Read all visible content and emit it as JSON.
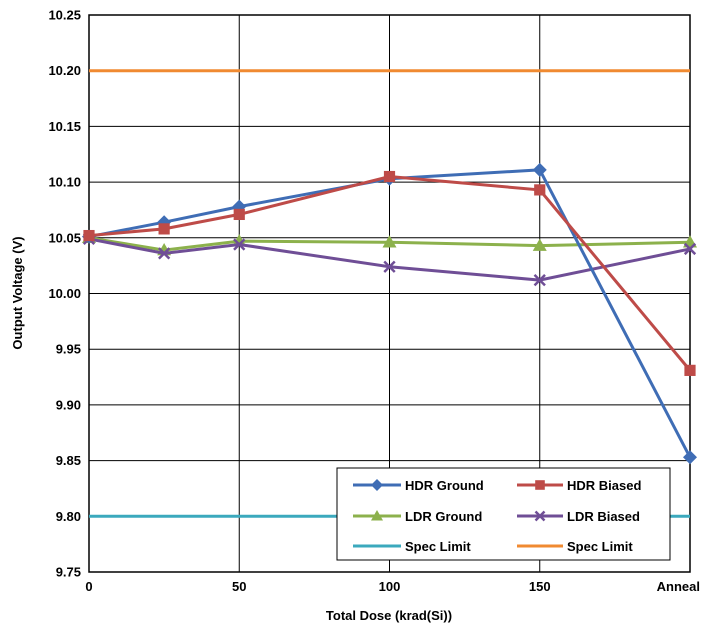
{
  "chart_data": {
    "type": "line",
    "title": "",
    "xlabel": "Total Dose (krad(Si))",
    "ylabel": "Output Voltage (V)",
    "categories": [
      "0",
      "50",
      "100",
      "150",
      "Anneal"
    ],
    "x_numeric": [
      0,
      25,
      50,
      100,
      150,
      200
    ],
    "ylim": [
      9.75,
      10.25
    ],
    "yticks": [
      "10.25",
      "10.20",
      "10.15",
      "10.10",
      "10.05",
      "10.00",
      "9.95",
      "9.90",
      "9.85",
      "9.80",
      "9.75"
    ],
    "grid": true,
    "legend_position": "bottom-right",
    "series": [
      {
        "name": "HDR Ground",
        "color": "#3f6db5",
        "marker": "diamond",
        "x": [
          0,
          25,
          50,
          100,
          150,
          200
        ],
        "values": [
          10.051,
          10.064,
          10.078,
          10.103,
          10.111,
          9.853
        ]
      },
      {
        "name": "HDR Biased",
        "color": "#be4b48",
        "marker": "square",
        "x": [
          0,
          25,
          50,
          100,
          150,
          200
        ],
        "values": [
          10.052,
          10.058,
          10.071,
          10.105,
          10.093,
          9.931
        ]
      },
      {
        "name": "LDR Ground",
        "color": "#8cb14c",
        "marker": "triangle",
        "x": [
          0,
          25,
          50,
          100,
          150,
          200
        ],
        "values": [
          10.05,
          10.039,
          10.047,
          10.046,
          10.043,
          10.046
        ]
      },
      {
        "name": "LDR Biased",
        "color": "#6f4e96",
        "marker": "x",
        "x": [
          0,
          25,
          50,
          100,
          150,
          200
        ],
        "values": [
          10.049,
          10.036,
          10.044,
          10.024,
          10.012,
          10.04
        ]
      },
      {
        "name": "Spec Limit",
        "color": "#3ba9bd",
        "marker": "none",
        "x": [
          0,
          200
        ],
        "values": [
          9.8,
          9.8
        ]
      },
      {
        "name": "Spec Limit",
        "color": "#f08a31",
        "marker": "none",
        "x": [
          0,
          200
        ],
        "values": [
          10.2,
          10.2
        ]
      }
    ]
  }
}
